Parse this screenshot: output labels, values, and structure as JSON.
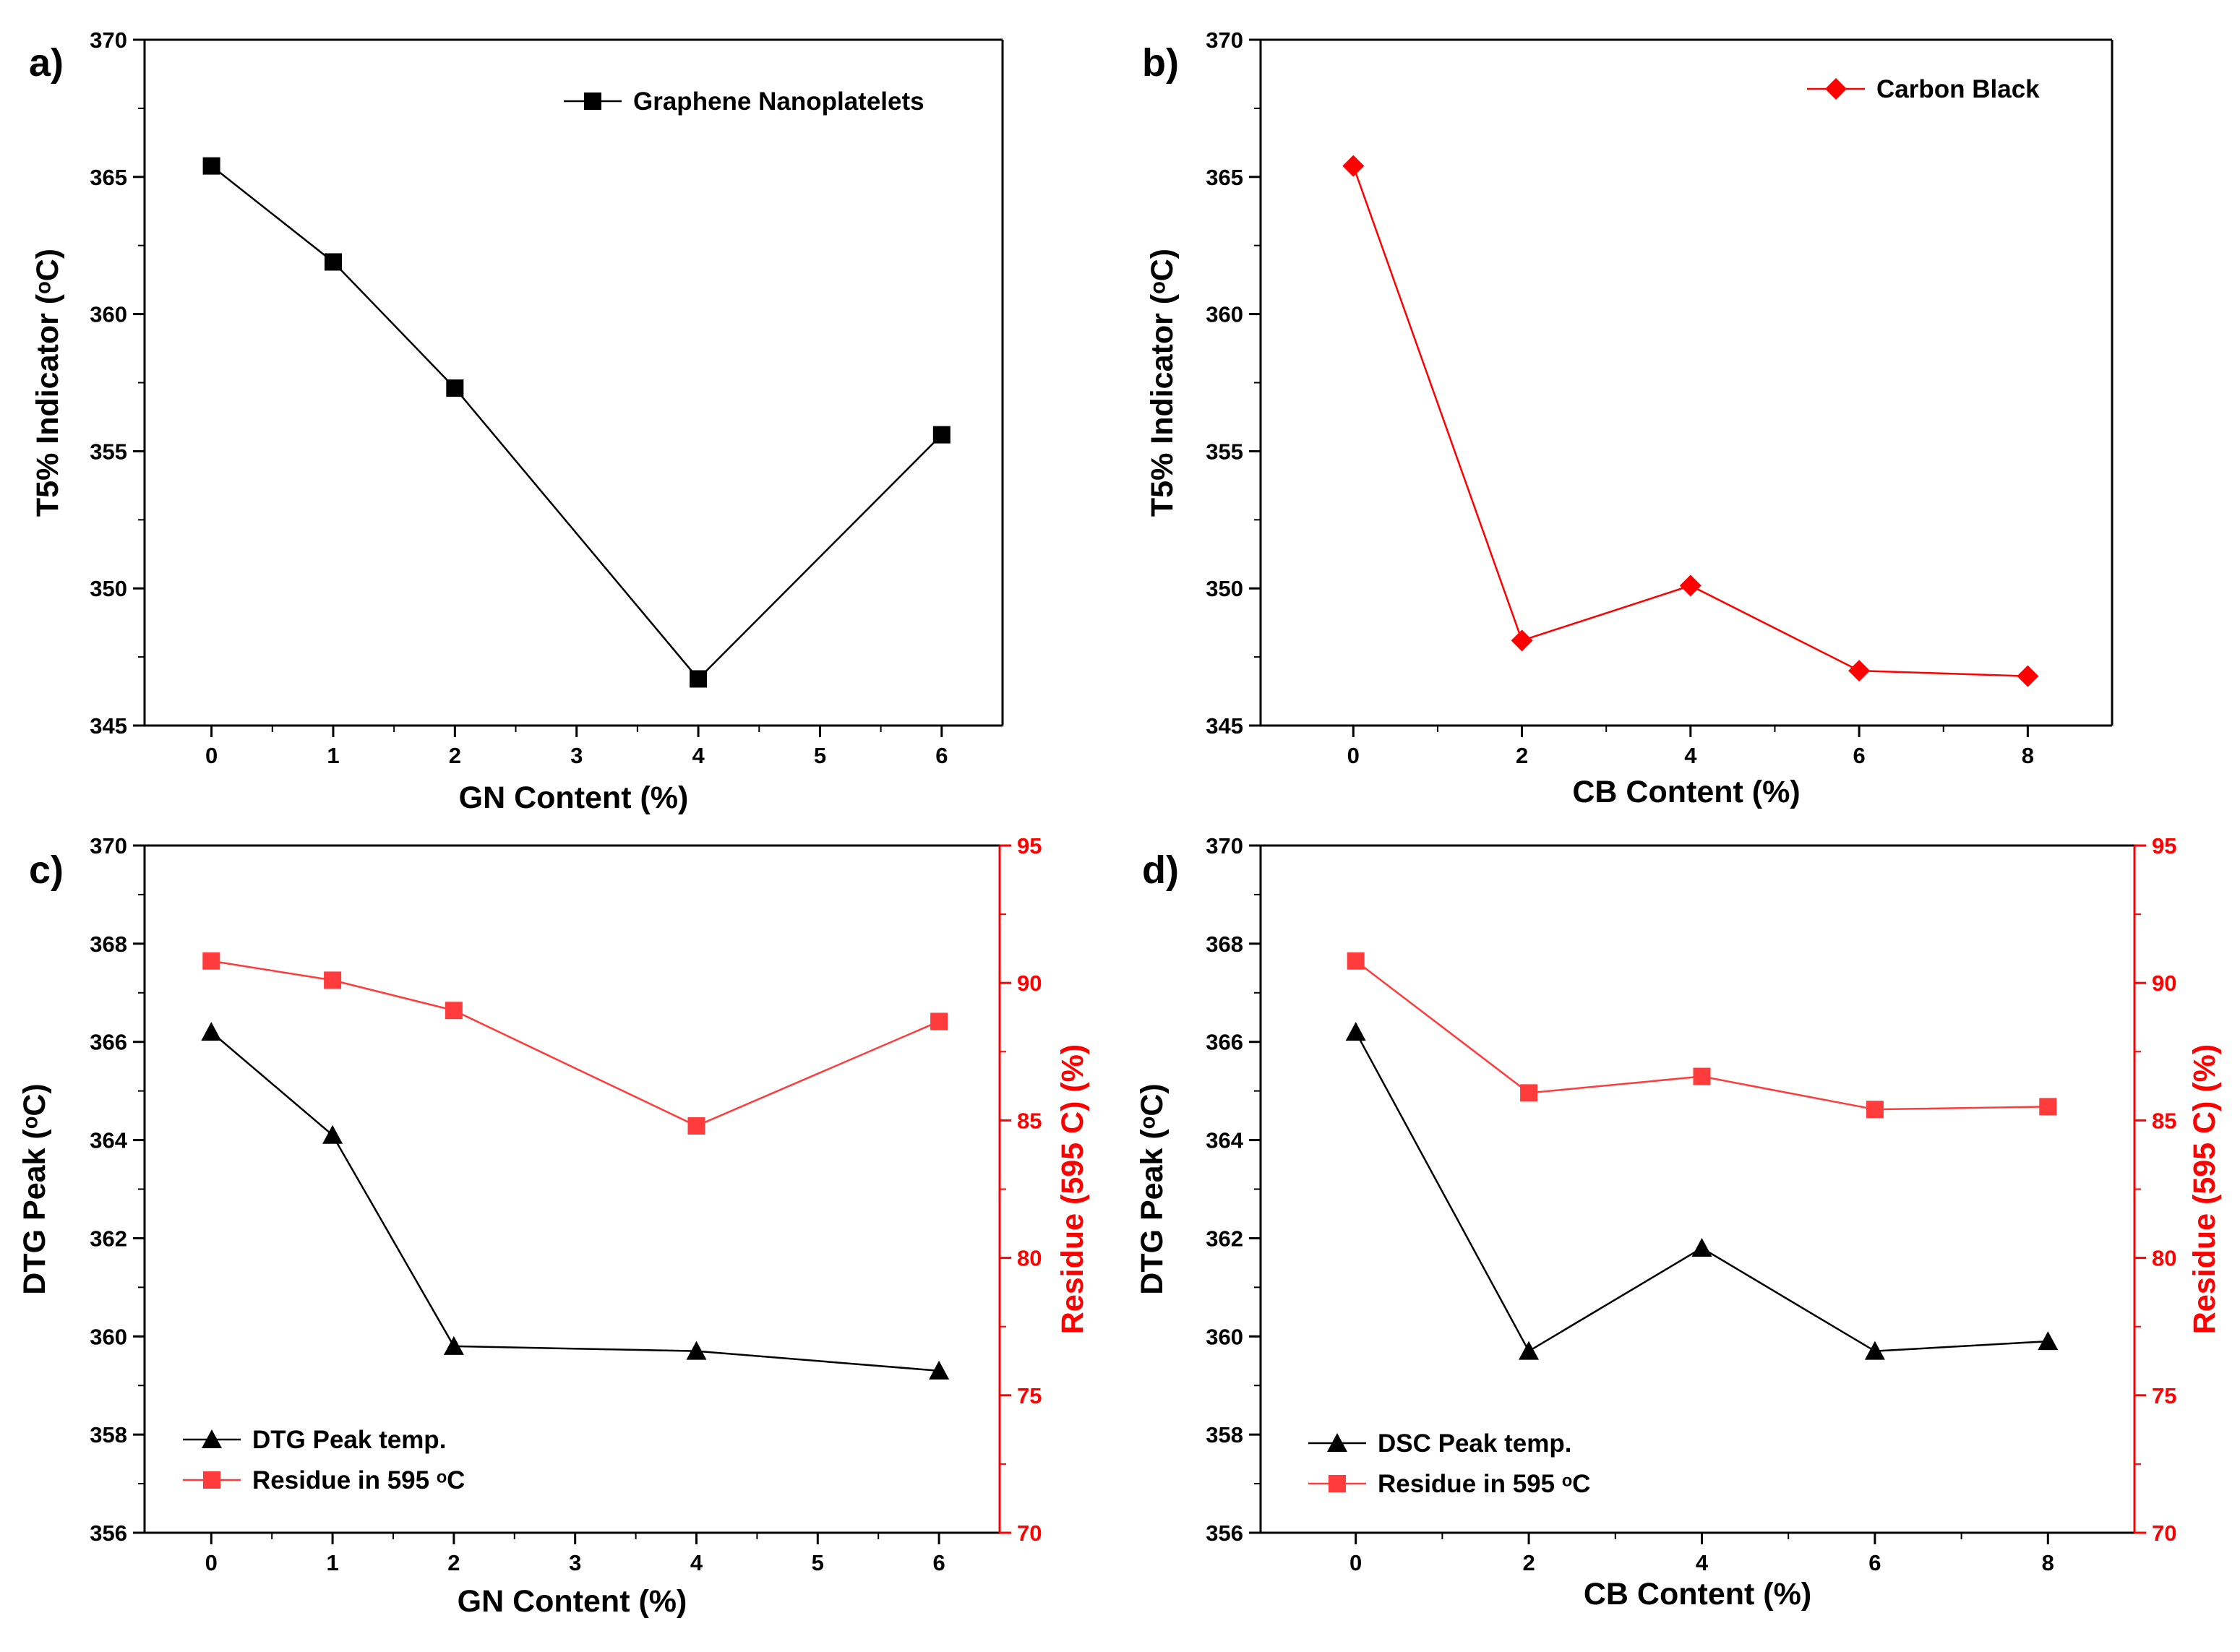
{
  "colors": {
    "black": "#000000",
    "red": "#ff0000",
    "red_light": "#ff3b3b"
  },
  "chart_data": [
    {
      "panel": "a)",
      "type": "line",
      "xlabel": "GN Content (%)",
      "ylabel": "T5% Indicator (ᵒC)",
      "xlim": [
        -0.55,
        6.5
      ],
      "ylim": [
        345,
        370
      ],
      "xticks": [
        0,
        1,
        2,
        3,
        4,
        5,
        6
      ],
      "yticks": [
        345,
        350,
        355,
        360,
        365,
        370
      ],
      "legend_position": "top-right",
      "series": [
        {
          "name": "Graphene Nanoplatelets",
          "color": "#000000",
          "marker": "square",
          "x": [
            0,
            1,
            2,
            4,
            6
          ],
          "values": [
            365.4,
            361.9,
            357.3,
            346.7,
            355.6
          ]
        }
      ]
    },
    {
      "panel": "b)",
      "type": "line",
      "xlabel": "CB Content (%)",
      "ylabel": "T5% Indicator (ᵒC)",
      "xlim": [
        -1.1,
        9.0
      ],
      "ylim": [
        345,
        370
      ],
      "xticks": [
        0,
        2,
        4,
        6,
        8
      ],
      "yticks": [
        345,
        350,
        355,
        360,
        365,
        370
      ],
      "legend_position": "top-right",
      "series": [
        {
          "name": "Carbon Black",
          "color": "#ff0000",
          "marker": "diamond",
          "x": [
            0,
            2,
            4,
            6,
            8
          ],
          "values": [
            365.4,
            348.1,
            350.1,
            347.0,
            346.8
          ]
        }
      ]
    },
    {
      "panel": "c)",
      "type": "line",
      "xlabel": "GN Content (%)",
      "ylabel": "DTG Peak (ᵒC)",
      "y2label": "Residue (595 C) (%)",
      "xlim": [
        -0.55,
        6.5
      ],
      "ylim": [
        356,
        370
      ],
      "y2lim": [
        70,
        95
      ],
      "xticks": [
        0,
        1,
        2,
        3,
        4,
        5,
        6
      ],
      "yticks": [
        356,
        358,
        360,
        362,
        364,
        366,
        368,
        370
      ],
      "y2ticks": [
        70,
        75,
        80,
        85,
        90,
        95
      ],
      "legend_position": "bottom-left",
      "series": [
        {
          "name": "DTG Peak temp.",
          "axis": "left",
          "color": "#000000",
          "marker": "triangle",
          "x": [
            0,
            1,
            2,
            4,
            6
          ],
          "values": [
            366.2,
            364.1,
            359.8,
            359.7,
            359.3
          ]
        },
        {
          "name": "Residue in 595 ᵒC",
          "axis": "right",
          "color": "#ff3b3b",
          "marker": "square",
          "x": [
            0,
            1,
            2,
            4,
            6
          ],
          "values": [
            90.8,
            90.1,
            89.0,
            84.8,
            88.6
          ]
        }
      ]
    },
    {
      "panel": "d)",
      "type": "line",
      "xlabel": "CB Content (%)",
      "ylabel": "DTG Peak (ᵒC)",
      "y2label": "Residue (595 C) (%)",
      "xlim": [
        -1.1,
        9.0
      ],
      "ylim": [
        356,
        370
      ],
      "y2lim": [
        70,
        95
      ],
      "xticks": [
        0,
        2,
        4,
        6,
        8
      ],
      "yticks": [
        356,
        358,
        360,
        362,
        364,
        366,
        368,
        370
      ],
      "y2ticks": [
        70,
        75,
        80,
        85,
        90,
        95
      ],
      "legend_position": "bottom-left",
      "series": [
        {
          "name": "DSC Peak temp.",
          "axis": "left",
          "color": "#000000",
          "marker": "triangle",
          "x": [
            0,
            2,
            4,
            6,
            8
          ],
          "values": [
            366.2,
            359.7,
            361.8,
            359.7,
            359.9
          ]
        },
        {
          "name": "Residue in 595 ᵒC",
          "axis": "right",
          "color": "#ff3b3b",
          "marker": "square",
          "x": [
            0,
            2,
            4,
            6,
            8
          ],
          "values": [
            90.8,
            86.0,
            86.6,
            85.4,
            85.5
          ]
        }
      ]
    }
  ]
}
